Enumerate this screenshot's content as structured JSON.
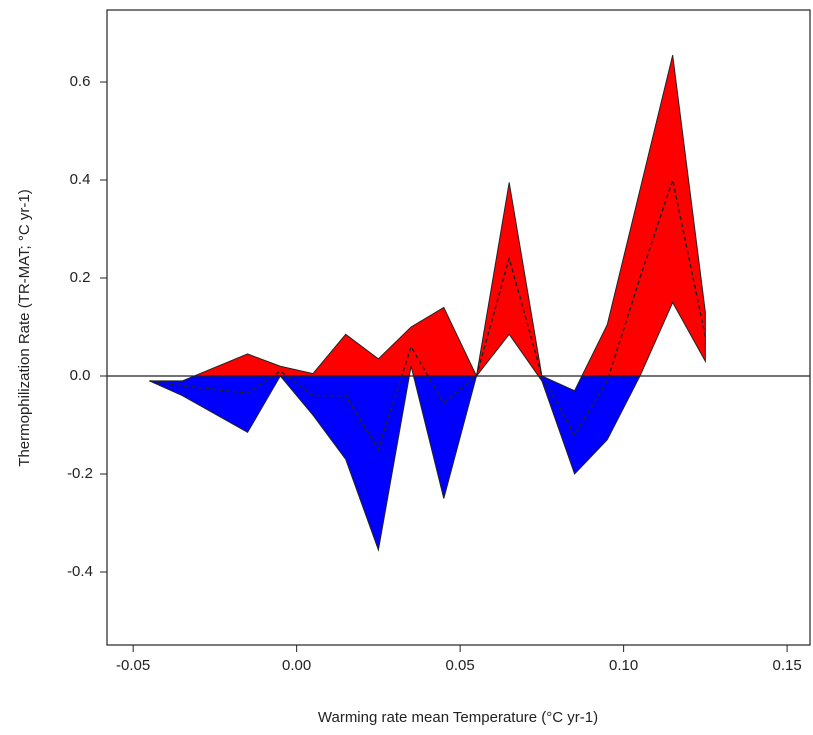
{
  "chart_data": {
    "type": "band",
    "x_label": "Warming rate mean Temperature (°C yr-1)",
    "y_label": "Thermophilization Rate (TR-MAT; °C yr-1)",
    "x": [
      -0.045,
      -0.035,
      -0.015,
      -0.005,
      0.005,
      0.015,
      0.025,
      0.035,
      0.045,
      0.055,
      0.065,
      0.075,
      0.085,
      0.095,
      0.105,
      0.115,
      0.125
    ],
    "series": [
      {
        "values": [
          -0.01,
          -0.01,
          0.045,
          0.02,
          0.005,
          0.085,
          0.035,
          0.1,
          0.14,
          0.0,
          0.395,
          0.0,
          -0.03,
          0.105,
          0.38,
          0.655,
          0.13
        ]
      },
      {
        "values": [
          -0.01,
          -0.04,
          -0.115,
          0.0,
          -0.08,
          -0.17,
          -0.355,
          0.02,
          -0.25,
          0.0,
          0.085,
          -0.01,
          -0.2,
          -0.13,
          0.0,
          0.15,
          0.03
        ]
      },
      {
        "values": [
          -0.01,
          -0.02,
          -0.035,
          0.01,
          -0.04,
          -0.04,
          -0.15,
          0.06,
          -0.055,
          0.0,
          0.24,
          0.0,
          -0.12,
          -0.01,
          0.2,
          0.4,
          0.08
        ],
        "dashed": true
      }
    ],
    "fill_above": "#ff0000",
    "fill_below": "#0000ff",
    "hline": 0,
    "xlim": [
      -0.058,
      0.157
    ],
    "xticks": [
      -0.05,
      {
        "value": 0,
        "label": "0.00"
      },
      0.05,
      {
        "value": 0.1,
        "label": "0.10"
      },
      0.15
    ],
    "ylim": [
      -0.549,
      0.747
    ],
    "yticks": [
      -0.4,
      -0.2,
      {
        "value": 0,
        "label": "0.0"
      },
      0.2,
      0.4,
      0.6
    ]
  }
}
